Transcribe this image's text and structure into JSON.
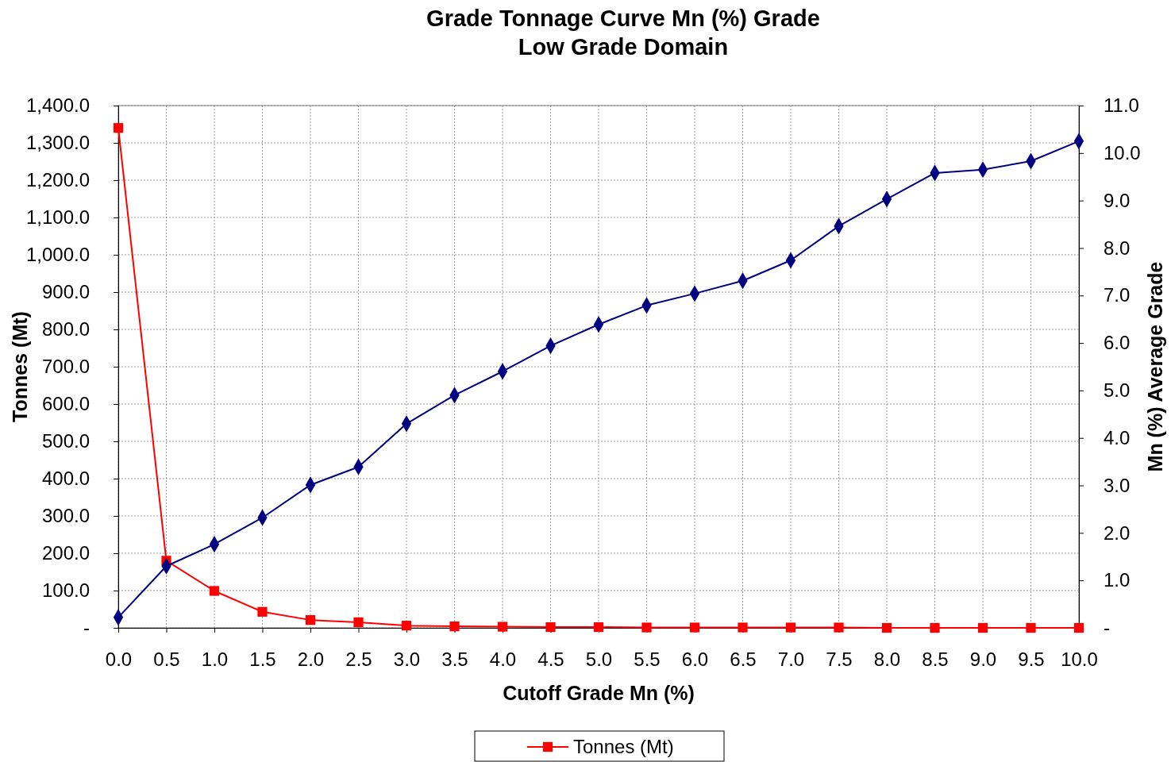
{
  "chart_data": {
    "type": "line",
    "title": "Grade Tonnage Curve Mn (%) Grade",
    "subtitle": "Low Grade Domain",
    "xlabel": "Cutoff Grade Mn (%)",
    "ylabel": "Tonnes (Mt)",
    "y2label": "Mn (%) Average Grade",
    "x": [
      0,
      0.5,
      1,
      1.5,
      2,
      2.5,
      3,
      3.5,
      4,
      4.5,
      5,
      5.5,
      6,
      6.5,
      7,
      7.5,
      8,
      8.5,
      9,
      9.5,
      10
    ],
    "xlim": [
      0,
      10
    ],
    "xticks": [
      {
        "value": 0,
        "label": "0.0"
      },
      {
        "value": 0.5,
        "label": "0.5"
      },
      {
        "value": 1,
        "label": "1.0"
      },
      {
        "value": 1.5,
        "label": "1.5"
      },
      {
        "value": 2,
        "label": "2.0"
      },
      {
        "value": 2.5,
        "label": "2.5"
      },
      {
        "value": 3,
        "label": "3.0"
      },
      {
        "value": 3.5,
        "label": "3.5"
      },
      {
        "value": 4,
        "label": "4.0"
      },
      {
        "value": 4.5,
        "label": "4.5"
      },
      {
        "value": 5,
        "label": "5.0"
      },
      {
        "value": 5.5,
        "label": "5.5"
      },
      {
        "value": 6,
        "label": "6.0"
      },
      {
        "value": 6.5,
        "label": "6.5"
      },
      {
        "value": 7,
        "label": "7.0"
      },
      {
        "value": 7.5,
        "label": "7.5"
      },
      {
        "value": 8,
        "label": "8.0"
      },
      {
        "value": 8.5,
        "label": "8.5"
      },
      {
        "value": 9,
        "label": "9.0"
      },
      {
        "value": 9.5,
        "label": "9.5"
      },
      {
        "value": 10,
        "label": "10.0"
      }
    ],
    "ylim": [
      0,
      1400
    ],
    "yticks": [
      {
        "value": 0,
        "label": "-"
      },
      {
        "value": 100,
        "label": "100.0"
      },
      {
        "value": 200,
        "label": "200.0"
      },
      {
        "value": 300,
        "label": "300.0"
      },
      {
        "value": 400,
        "label": "400.0"
      },
      {
        "value": 500,
        "label": "500.0"
      },
      {
        "value": 600,
        "label": "600.0"
      },
      {
        "value": 700,
        "label": "700.0"
      },
      {
        "value": 800,
        "label": "800.0"
      },
      {
        "value": 900,
        "label": "900.0"
      },
      {
        "value": 1000,
        "label": "1,000.0"
      },
      {
        "value": 1100,
        "label": "1,100.0"
      },
      {
        "value": 1200,
        "label": "1,200.0"
      },
      {
        "value": 1300,
        "label": "1,300.0"
      },
      {
        "value": 1400,
        "label": "1,400.0"
      }
    ],
    "y2lim": [
      0,
      11
    ],
    "y2ticks": [
      {
        "value": 0,
        "label": "-"
      },
      {
        "value": 1,
        "label": "1.0"
      },
      {
        "value": 2,
        "label": "2.0"
      },
      {
        "value": 3,
        "label": "3.0"
      },
      {
        "value": 4,
        "label": "4.0"
      },
      {
        "value": 5,
        "label": "5.0"
      },
      {
        "value": 6,
        "label": "6.0"
      },
      {
        "value": 7,
        "label": "7.0"
      },
      {
        "value": 8,
        "label": "8.0"
      },
      {
        "value": 9,
        "label": "9.0"
      },
      {
        "value": 10,
        "label": "10.0"
      },
      {
        "value": 11,
        "label": "11.0"
      }
    ],
    "grid": true,
    "legend": "bottom",
    "series": [
      {
        "name": "Tonnes (Mt)",
        "color": "#ff0000",
        "marker": "square",
        "values": [
          1340,
          180,
          99,
          43,
          21,
          15,
          6,
          4,
          3,
          2,
          2,
          1,
          1,
          1,
          1,
          1,
          0,
          0,
          0,
          0,
          0
        ]
      },
      {
        "color": "#000080",
        "marker": "diamond",
        "axis": "y2",
        "values": [
          0.22,
          1.3,
          1.76,
          2.32,
          3.01,
          3.39,
          4.3,
          4.9,
          5.4,
          5.94,
          6.39,
          6.79,
          7.04,
          7.31,
          7.74,
          8.46,
          9.03,
          9.58,
          9.65,
          9.83,
          10.25
        ]
      }
    ]
  }
}
